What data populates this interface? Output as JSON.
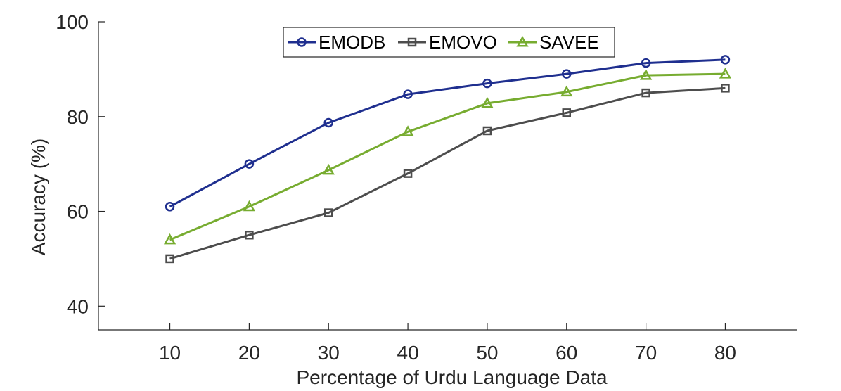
{
  "chart_data": {
    "type": "line",
    "title": "",
    "xlabel": "Percentage of Urdu Language Data",
    "ylabel": "Accuracy (%)",
    "x": [
      10,
      20,
      30,
      40,
      50,
      60,
      70,
      80
    ],
    "x_ticks": [
      "10",
      "20",
      "30",
      "40",
      "50",
      "60",
      "70",
      "80"
    ],
    "xlim": [
      1,
      89
    ],
    "ylim": [
      35,
      100
    ],
    "y_ticks": [
      40,
      60,
      80,
      100
    ],
    "y_tick_labels": [
      "40",
      "60",
      "80",
      "100"
    ],
    "grid": false,
    "legend_position": "top-center",
    "series": [
      {
        "name": "EMODB",
        "color": "#1f2f8f",
        "marker": "circle",
        "values": [
          61.0,
          70.0,
          78.7,
          84.7,
          87.0,
          89.0,
          91.3,
          92.0
        ]
      },
      {
        "name": "EMOVO",
        "color": "#4d4d4d",
        "marker": "square",
        "values": [
          50.0,
          55.0,
          59.7,
          68.0,
          77.0,
          80.8,
          85.0,
          86.0
        ]
      },
      {
        "name": "SAVEE",
        "color": "#77ac30",
        "marker": "triangle",
        "values": [
          54.0,
          61.0,
          68.7,
          76.8,
          82.8,
          85.2,
          88.7,
          89.0
        ]
      }
    ]
  }
}
